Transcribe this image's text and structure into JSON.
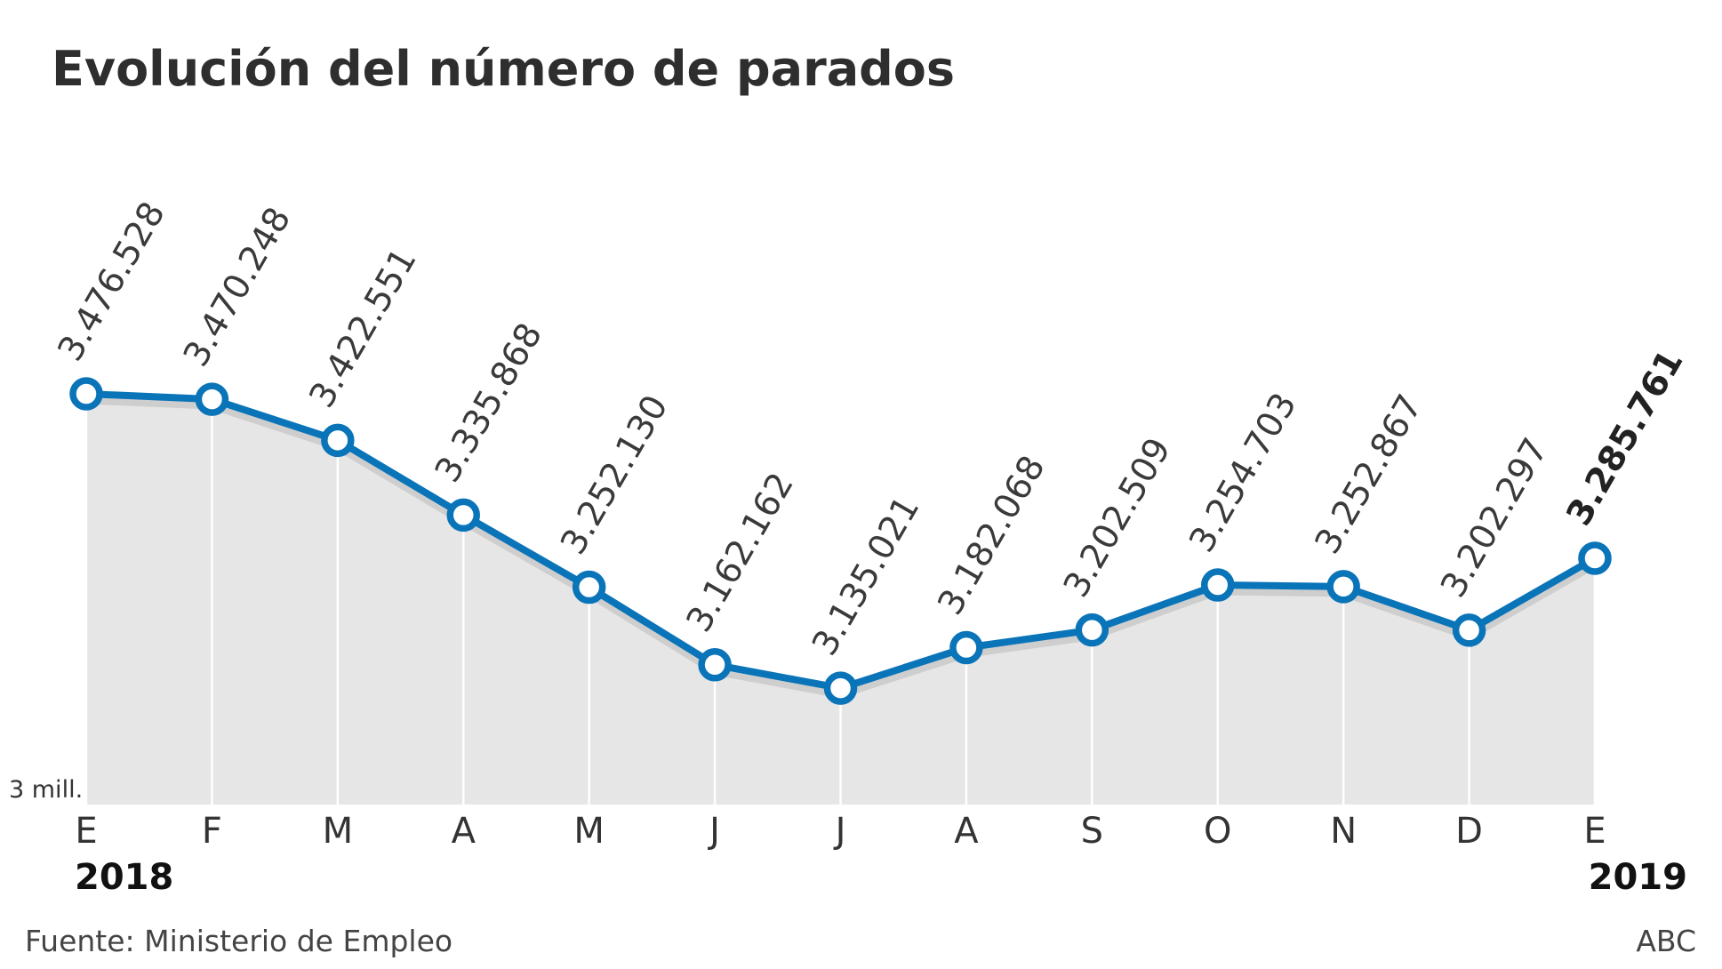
{
  "colors": {
    "line": "#0a74b9",
    "area": "#e6e6e6",
    "shadow": "#c9c9c9",
    "gridline": "#ffffff",
    "marker_fill": "#ffffff"
  },
  "footer": {
    "source": "Fuente: Ministerio de Empleo",
    "credit": "ABC"
  },
  "chart_data": {
    "type": "area",
    "title": "Evolución del número de parados",
    "categories": [
      "E",
      "F",
      "M",
      "A",
      "M",
      "J",
      "J",
      "A",
      "S",
      "O",
      "N",
      "D",
      "E"
    ],
    "year_labels": [
      {
        "index": 0,
        "text": "2018"
      },
      {
        "index": 12,
        "text": "2019"
      }
    ],
    "series": [
      {
        "values": [
          3476528,
          3470248,
          3422551,
          3335868,
          3252130,
          3162162,
          3135021,
          3182068,
          3202509,
          3254703,
          3252867,
          3202297,
          3285761
        ],
        "labels": [
          "3.476.528",
          "3.470.248",
          "3.422.551",
          "3.335.868",
          "3.252.130",
          "3.162.162",
          "3.135.021",
          "3.182.068",
          "3.202.509",
          "3.254.703",
          "3.252.867",
          "3.202.297",
          "3.285.761"
        ],
        "highlight_index": 12
      }
    ],
    "ylim": [
      3000000,
      3476528
    ],
    "y_min_label": "3 mill.",
    "grid": true
  }
}
